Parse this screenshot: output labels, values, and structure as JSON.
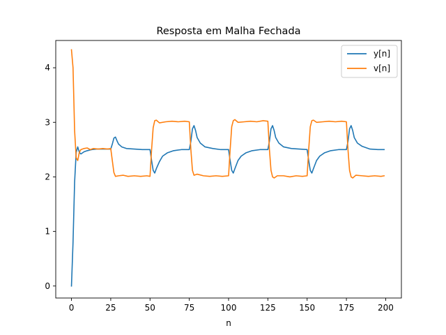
{
  "chart_data": {
    "type": "line",
    "title": "Resposta em Malha Fechada",
    "xlabel": "n",
    "ylabel": "",
    "xlim": [
      -10,
      210
    ],
    "ylim": [
      -0.22,
      4.5
    ],
    "xticks": [
      0,
      25,
      50,
      75,
      100,
      125,
      150,
      175,
      200
    ],
    "yticks": [
      0,
      1,
      2,
      3,
      4
    ],
    "grid": false,
    "legend": "top-right",
    "series": [
      {
        "name": "y[n]",
        "color": "#1f77b4",
        "points": [
          [
            0,
            0.0
          ],
          [
            1,
            0.8
          ],
          [
            2,
            1.9
          ],
          [
            3,
            2.45
          ],
          [
            4,
            2.55
          ],
          [
            5,
            2.45
          ],
          [
            6,
            2.42
          ],
          [
            8,
            2.46
          ],
          [
            10,
            2.48
          ],
          [
            13,
            2.5
          ],
          [
            16,
            2.51
          ],
          [
            20,
            2.51
          ],
          [
            25,
            2.51
          ],
          [
            26,
            2.6
          ],
          [
            27,
            2.71
          ],
          [
            28,
            2.73
          ],
          [
            29,
            2.66
          ],
          [
            30,
            2.6
          ],
          [
            32,
            2.55
          ],
          [
            35,
            2.52
          ],
          [
            40,
            2.51
          ],
          [
            45,
            2.5
          ],
          [
            50,
            2.5
          ],
          [
            51,
            2.3
          ],
          [
            52,
            2.12
          ],
          [
            53,
            2.07
          ],
          [
            54,
            2.15
          ],
          [
            56,
            2.28
          ],
          [
            58,
            2.38
          ],
          [
            61,
            2.44
          ],
          [
            65,
            2.48
          ],
          [
            70,
            2.5
          ],
          [
            75,
            2.5
          ],
          [
            76,
            2.65
          ],
          [
            77,
            2.88
          ],
          [
            78,
            2.94
          ],
          [
            79,
            2.85
          ],
          [
            80,
            2.72
          ],
          [
            82,
            2.62
          ],
          [
            85,
            2.55
          ],
          [
            90,
            2.52
          ],
          [
            95,
            2.5
          ],
          [
            100,
            2.5
          ],
          [
            101,
            2.3
          ],
          [
            102,
            2.12
          ],
          [
            103,
            2.07
          ],
          [
            104,
            2.15
          ],
          [
            106,
            2.3
          ],
          [
            108,
            2.38
          ],
          [
            111,
            2.44
          ],
          [
            115,
            2.48
          ],
          [
            120,
            2.5
          ],
          [
            125,
            2.5
          ],
          [
            126,
            2.65
          ],
          [
            127,
            2.88
          ],
          [
            128,
            2.94
          ],
          [
            129,
            2.85
          ],
          [
            130,
            2.72
          ],
          [
            132,
            2.62
          ],
          [
            135,
            2.55
          ],
          [
            140,
            2.52
          ],
          [
            145,
            2.51
          ],
          [
            150,
            2.5
          ],
          [
            151,
            2.3
          ],
          [
            152,
            2.12
          ],
          [
            153,
            2.07
          ],
          [
            154,
            2.15
          ],
          [
            156,
            2.3
          ],
          [
            158,
            2.38
          ],
          [
            161,
            2.44
          ],
          [
            165,
            2.48
          ],
          [
            170,
            2.5
          ],
          [
            175,
            2.5
          ],
          [
            176,
            2.65
          ],
          [
            177,
            2.88
          ],
          [
            178,
            2.94
          ],
          [
            179,
            2.85
          ],
          [
            180,
            2.72
          ],
          [
            182,
            2.62
          ],
          [
            185,
            2.56
          ],
          [
            190,
            2.51
          ],
          [
            195,
            2.5
          ],
          [
            199,
            2.5
          ]
        ]
      },
      {
        "name": "v[n]",
        "color": "#ff7f0e",
        "points": [
          [
            0,
            4.33
          ],
          [
            1,
            4.0
          ],
          [
            2,
            2.85
          ],
          [
            3,
            2.35
          ],
          [
            4,
            2.3
          ],
          [
            5,
            2.45
          ],
          [
            6,
            2.5
          ],
          [
            8,
            2.52
          ],
          [
            10,
            2.53
          ],
          [
            12,
            2.5
          ],
          [
            14,
            2.52
          ],
          [
            17,
            2.51
          ],
          [
            20,
            2.52
          ],
          [
            23,
            2.51
          ],
          [
            25,
            2.52
          ],
          [
            26,
            2.3
          ],
          [
            27,
            2.08
          ],
          [
            28,
            2.01
          ],
          [
            30,
            2.02
          ],
          [
            33,
            2.03
          ],
          [
            36,
            2.01
          ],
          [
            40,
            2.02
          ],
          [
            44,
            2.01
          ],
          [
            48,
            2.02
          ],
          [
            50,
            2.01
          ],
          [
            51,
            2.5
          ],
          [
            52,
            2.9
          ],
          [
            53,
            3.03
          ],
          [
            54,
            3.04
          ],
          [
            56,
            2.99
          ],
          [
            60,
            3.01
          ],
          [
            64,
            3.02
          ],
          [
            68,
            3.01
          ],
          [
            72,
            3.02
          ],
          [
            75,
            3.01
          ],
          [
            76,
            2.5
          ],
          [
            77,
            2.12
          ],
          [
            78,
            2.03
          ],
          [
            80,
            2.05
          ],
          [
            84,
            2.02
          ],
          [
            88,
            2.01
          ],
          [
            92,
            2.02
          ],
          [
            96,
            2.01
          ],
          [
            100,
            2.02
          ],
          [
            101,
            2.5
          ],
          [
            102,
            2.92
          ],
          [
            103,
            3.03
          ],
          [
            104,
            3.05
          ],
          [
            106,
            3.0
          ],
          [
            110,
            3.01
          ],
          [
            114,
            3.02
          ],
          [
            118,
            3.01
          ],
          [
            122,
            3.03
          ],
          [
            125,
            3.02
          ],
          [
            126,
            2.5
          ],
          [
            127,
            2.12
          ],
          [
            128,
            2.0
          ],
          [
            129,
            1.98
          ],
          [
            131,
            2.02
          ],
          [
            135,
            2.02
          ],
          [
            139,
            2.0
          ],
          [
            143,
            2.02
          ],
          [
            147,
            2.01
          ],
          [
            150,
            2.02
          ],
          [
            151,
            2.5
          ],
          [
            152,
            2.92
          ],
          [
            153,
            3.03
          ],
          [
            154,
            3.04
          ],
          [
            156,
            3.0
          ],
          [
            160,
            3.01
          ],
          [
            164,
            3.02
          ],
          [
            168,
            3.01
          ],
          [
            172,
            3.02
          ],
          [
            175,
            3.01
          ],
          [
            176,
            2.5
          ],
          [
            177,
            2.12
          ],
          [
            178,
            2.0
          ],
          [
            179,
            1.98
          ],
          [
            181,
            2.03
          ],
          [
            185,
            2.02
          ],
          [
            189,
            2.01
          ],
          [
            193,
            2.02
          ],
          [
            197,
            2.01
          ],
          [
            199,
            2.02
          ]
        ]
      }
    ]
  }
}
